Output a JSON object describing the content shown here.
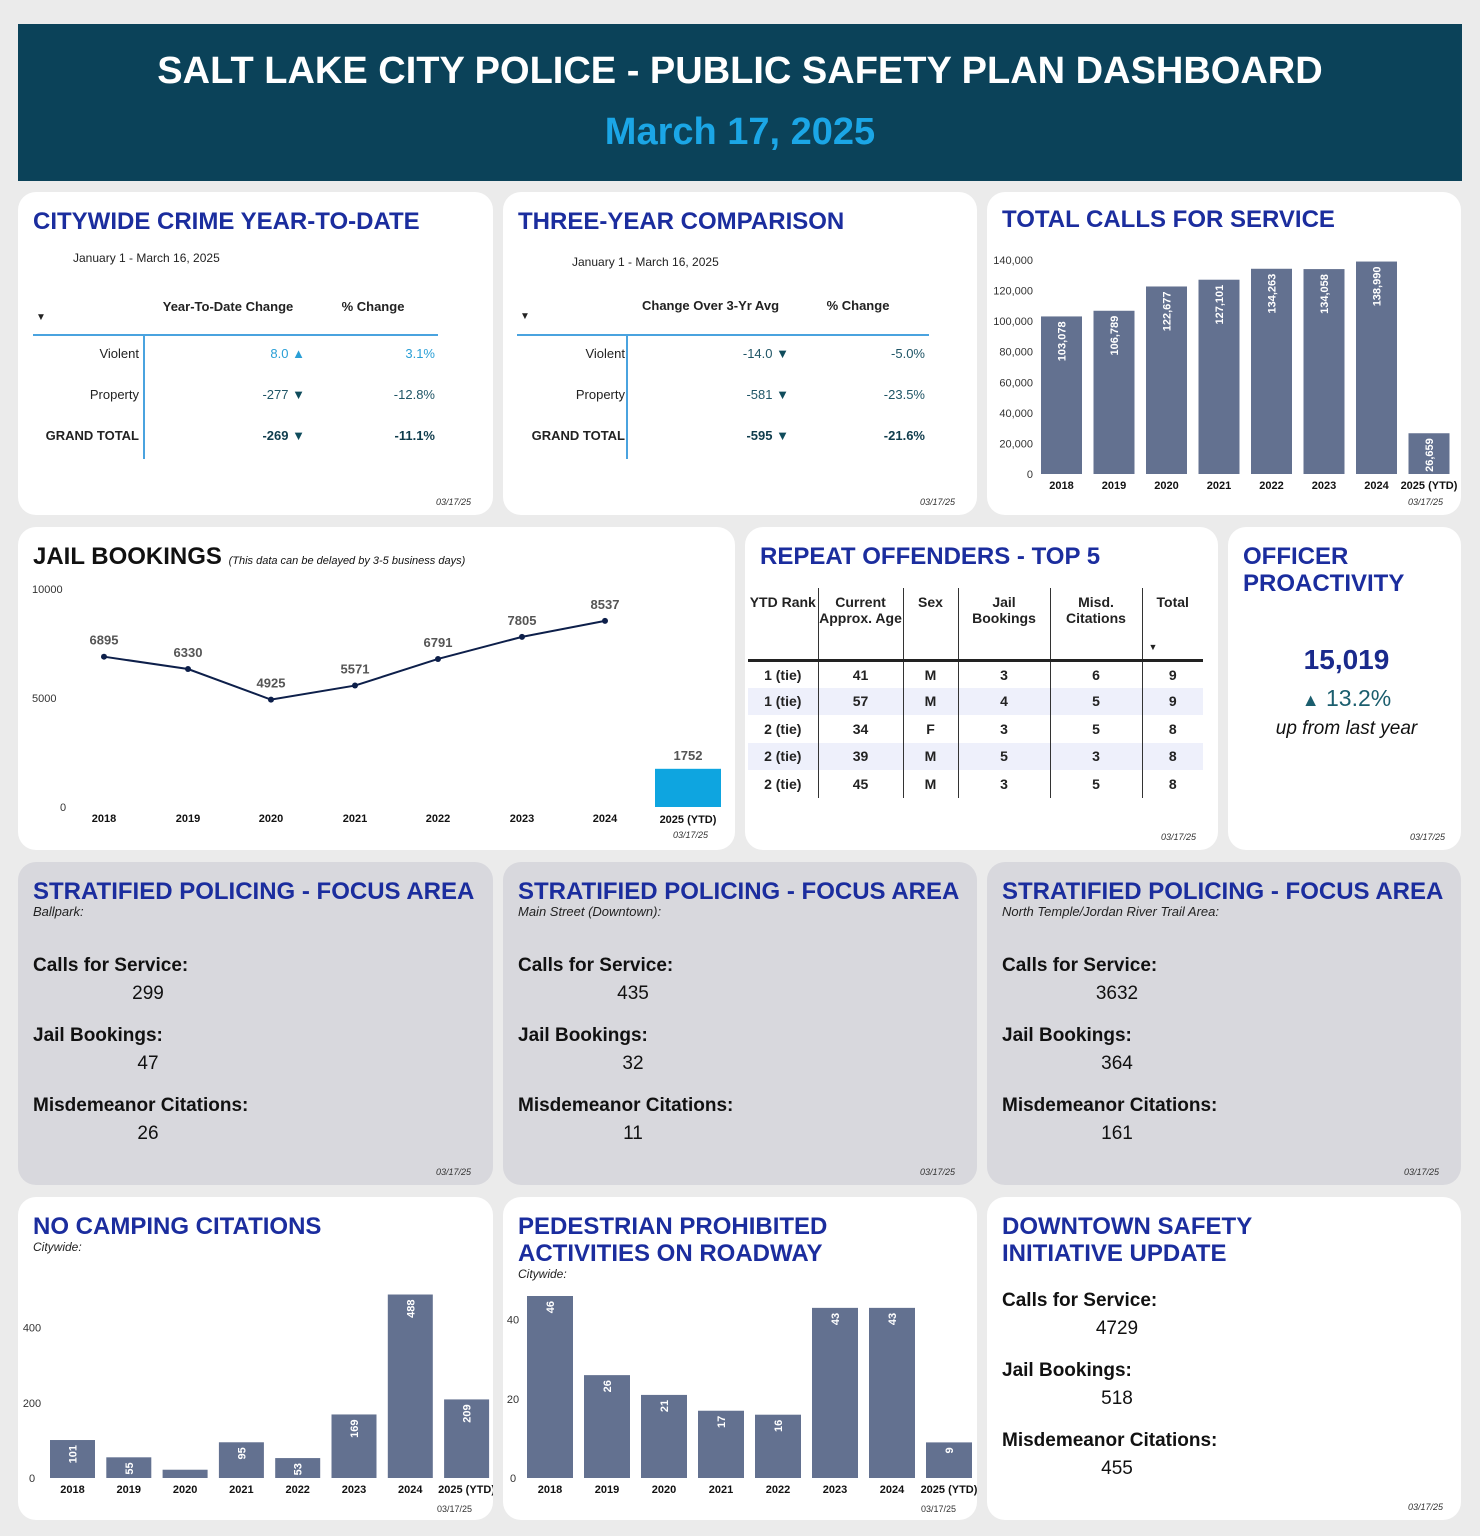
{
  "header": {
    "title": "SALT LAKE CITY POLICE - PUBLIC SAFETY PLAN DASHBOARD",
    "date": "March 17, 2025"
  },
  "stamp": "03/17/25",
  "crime_ytd": {
    "title": "CITYWIDE CRIME YEAR-TO-DATE",
    "period": "January 1 - March 16, 2025",
    "col1": "Year-To-Date Change",
    "col2": "% Change",
    "rows": [
      {
        "label": "Violent",
        "change": "8.0",
        "dir": "up",
        "pct": "3.1%"
      },
      {
        "label": "Property",
        "change": "-277",
        "dir": "down",
        "pct": "-12.8%"
      },
      {
        "label": "GRAND TOTAL",
        "change": "-269",
        "dir": "down",
        "pct": "-11.1%"
      }
    ]
  },
  "three_year": {
    "title": "THREE-YEAR COMPARISON",
    "period": "January 1 - March 16, 2025",
    "col1": "Change Over 3-Yr Avg",
    "col2": "% Change",
    "rows": [
      {
        "label": "Violent",
        "change": "-14.0",
        "dir": "down",
        "pct": "-5.0%"
      },
      {
        "label": "Property",
        "change": "-581",
        "dir": "down",
        "pct": "-23.5%"
      },
      {
        "label": "GRAND TOTAL",
        "change": "-595",
        "dir": "down",
        "pct": "-21.6%"
      }
    ]
  },
  "calls": {
    "title": "TOTAL CALLS FOR SERVICE"
  },
  "jail": {
    "title": "JAIL BOOKINGS",
    "note": "(This data can be delayed by 3-5 business days)"
  },
  "repeat": {
    "title": "REPEAT OFFENDERS - TOP 5",
    "headers": [
      "YTD Rank",
      "Current Approx. Age",
      "Sex",
      "Jail Bookings",
      "Misd. Citations",
      "Total"
    ],
    "rows": [
      [
        "1 (tie)",
        "41",
        "M",
        "3",
        "6",
        "9"
      ],
      [
        "1 (tie)",
        "57",
        "M",
        "4",
        "5",
        "9"
      ],
      [
        "2 (tie)",
        "34",
        "F",
        "3",
        "5",
        "8"
      ],
      [
        "2 (tie)",
        "39",
        "M",
        "5",
        "3",
        "8"
      ],
      [
        "2 (tie)",
        "45",
        "M",
        "3",
        "5",
        "8"
      ]
    ]
  },
  "proactivity": {
    "title_line1": "OFFICER",
    "title_line2": "PROACTIVITY",
    "value": "15,019",
    "change": "13.2%",
    "note": "up from last year"
  },
  "focus_areas": [
    {
      "title": "STRATIFIED POLICING - FOCUS AREA",
      "area": "Ballpark:",
      "calls_label": "Calls for Service:",
      "calls": "299",
      "jail_label": "Jail Bookings:",
      "jail": "47",
      "misd_label": "Misdemeanor Citations:",
      "misd": "26"
    },
    {
      "title": "STRATIFIED POLICING - FOCUS AREA",
      "area": "Main Street (Downtown):",
      "calls_label": "Calls for Service:",
      "calls": "435",
      "jail_label": "Jail Bookings:",
      "jail": "32",
      "misd_label": "Misdemeanor Citations:",
      "misd": "11"
    },
    {
      "title": "STRATIFIED POLICING - FOCUS AREA",
      "area": "North Temple/Jordan River Trail Area:",
      "calls_label": "Calls for Service:",
      "calls": "3632",
      "jail_label": "Jail Bookings:",
      "jail": "364",
      "misd_label": "Misdemeanor Citations:",
      "misd": "161"
    }
  ],
  "camping": {
    "title": "NO CAMPING CITATIONS",
    "area": "Citywide:"
  },
  "pedestrian": {
    "title_line1": "PEDESTRIAN PROHIBITED",
    "title_line2": "ACTIVITIES ON ROADWAY",
    "area": "Citywide:"
  },
  "downtown": {
    "title_line1": "DOWNTOWN SAFETY",
    "title_line2": "INITIATIVE UPDATE",
    "calls_label": "Calls for Service:",
    "calls": "4729",
    "jail_label": "Jail Bookings:",
    "jail": "518",
    "misd_label": "Misdemeanor Citations:",
    "misd": "455"
  },
  "colors": {
    "header_bg": "#0b4259",
    "date": "#1ba6e6",
    "title": "#1b2d9e",
    "bar": "#637190",
    "jail_ytd_bar": "#0ea5e0",
    "line": "#0d1f4a"
  },
  "chart_data": [
    {
      "id": "calls",
      "type": "bar",
      "categories": [
        "2018",
        "2019",
        "2020",
        "2021",
        "2022",
        "2023",
        "2024",
        "2025 (YTD)"
      ],
      "values": [
        103078,
        106789,
        122677,
        127101,
        134263,
        134058,
        138990,
        26659
      ],
      "labels": [
        "103,078",
        "106,789",
        "122,677",
        "127,101",
        "134,263",
        "134,058",
        "138,990",
        "26,659"
      ],
      "ylim": [
        0,
        140000
      ],
      "yticks": [
        "0",
        "20,000",
        "40,000",
        "60,000",
        "80,000",
        "100,000",
        "120,000",
        "140,000"
      ],
      "ytick_values": [
        0,
        20000,
        40000,
        60000,
        80000,
        100000,
        120000,
        140000
      ],
      "grid": false
    },
    {
      "id": "jail",
      "type": "line",
      "categories": [
        "2018",
        "2019",
        "2020",
        "2021",
        "2022",
        "2023",
        "2024",
        "2025 (YTD)"
      ],
      "values": [
        6895,
        6330,
        4925,
        5571,
        6791,
        7805,
        8537,
        1752
      ],
      "labels": [
        "6895",
        "6330",
        "4925",
        "5571",
        "6791",
        "7805",
        "8537",
        "1752"
      ],
      "note": "2025 (YTD) shown as bar",
      "ylim": [
        0,
        10000
      ],
      "yticks": [
        "0",
        "5000",
        "10000"
      ],
      "ytick_values": [
        0,
        5000,
        10000
      ],
      "grid": false
    },
    {
      "id": "camping",
      "type": "bar",
      "categories": [
        "2018",
        "2019",
        "2020",
        "2021",
        "2022",
        "2023",
        "2024",
        "2025 (YTD)"
      ],
      "values": [
        101,
        55,
        22,
        95,
        53,
        169,
        488,
        209
      ],
      "labels": [
        "101",
        "55",
        "",
        "95",
        "53",
        "169",
        "488",
        "209"
      ],
      "ylim": [
        0,
        500
      ],
      "yticks": [
        "0",
        "200",
        "400"
      ],
      "ytick_values": [
        0,
        200,
        400
      ],
      "grid": false
    },
    {
      "id": "pedestrian",
      "type": "bar",
      "categories": [
        "2018",
        "2019",
        "2020",
        "2021",
        "2022",
        "2023",
        "2024",
        "2025 (YTD)"
      ],
      "values": [
        46,
        26,
        21,
        17,
        16,
        43,
        43,
        9
      ],
      "labels": [
        "46",
        "26",
        "21",
        "17",
        "16",
        "43",
        "43",
        "9"
      ],
      "ylim": [
        0,
        46
      ],
      "yticks": [
        "0",
        "20",
        "40"
      ],
      "ytick_values": [
        0,
        20,
        40
      ],
      "grid": false
    }
  ]
}
